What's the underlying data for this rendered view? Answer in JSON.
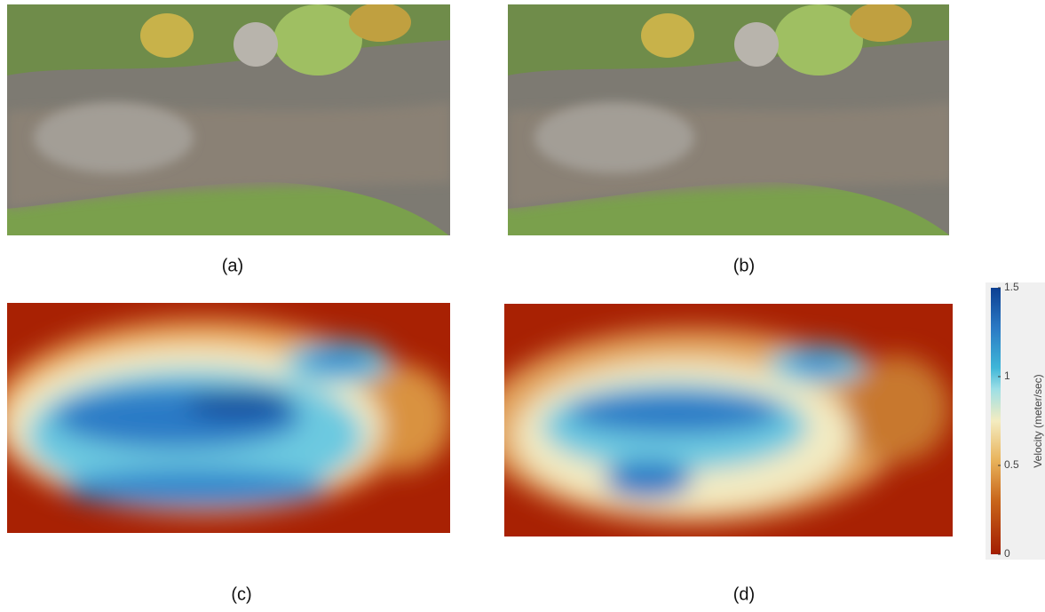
{
  "panels": [
    {
      "label": "(a)"
    },
    {
      "label": "(b)"
    },
    {
      "label": "(c)"
    },
    {
      "label": "(d)"
    }
  ],
  "colorbar": {
    "label": "Velocity (meter/sec)",
    "range": [
      0,
      1.5
    ],
    "ticks": [
      0,
      0.5,
      1,
      1.5
    ]
  }
}
